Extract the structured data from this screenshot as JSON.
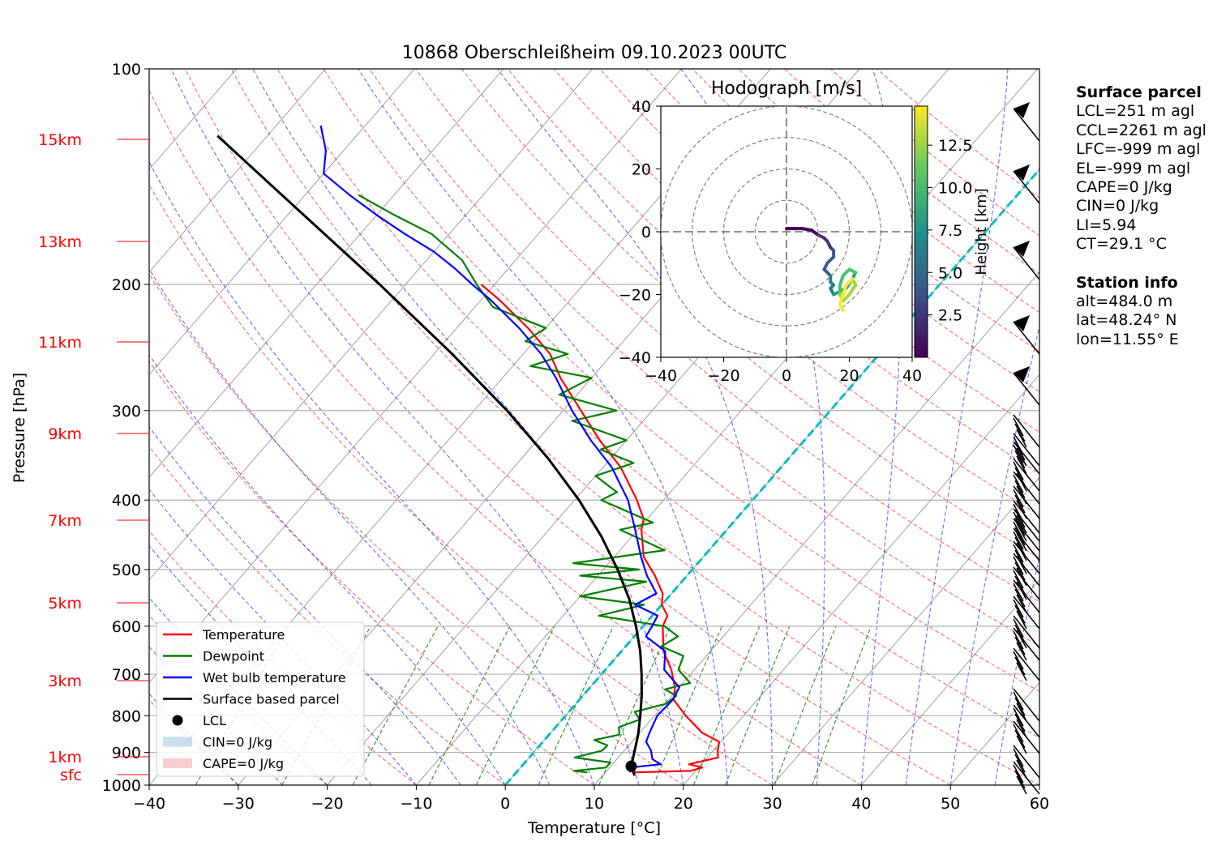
{
  "chart_data": {
    "type": "skew-t log-p",
    "title": "10868 Oberschleißheim 09.10.2023 00UTC",
    "xlabel": "Temperature [°C]",
    "ylabel": "Pressure [hPa]",
    "xlim": [
      -40,
      60
    ],
    "ylim": [
      1000,
      100
    ],
    "grid": true,
    "x_ticks": [
      "−40",
      "−30",
      "−20",
      "−10",
      "0",
      "10",
      "20",
      "30",
      "40",
      "50",
      "60"
    ],
    "y_ticks": [
      {
        "p": 100,
        "label": "100"
      },
      {
        "p": 200,
        "label": "200"
      },
      {
        "p": 300,
        "label": "300"
      },
      {
        "p": 400,
        "label": "400"
      },
      {
        "p": 500,
        "label": "500"
      },
      {
        "p": 600,
        "label": "600"
      },
      {
        "p": 700,
        "label": "700"
      },
      {
        "p": 800,
        "label": "800"
      },
      {
        "p": 900,
        "label": "900"
      },
      {
        "p": 1000,
        "label": "1000"
      }
    ],
    "height_labels": [
      {
        "p": 124,
        "label": "15km"
      },
      {
        "p": 158,
        "label": "13km"
      },
      {
        "p": 200,
        "label": "11km"
      },
      {
        "p": 249,
        "label": "9km"
      },
      {
        "p": 300,
        "label": "7km"
      },
      {
        "p": 361,
        "label": "5km"
      },
      {
        "p": 434,
        "label": "3km"
      },
      {
        "p": 525,
        "label": "1km"
      },
      {
        "p": 592,
        "label": "sfc"
      }
    ],
    "series": [
      {
        "name": "Temperature",
        "color": "#ff0000",
        "points": [
          [
            960,
            13.2
          ],
          [
            955,
            19.5
          ],
          [
            945,
            20.4
          ],
          [
            935,
            18.6
          ],
          [
            915,
            21.2
          ],
          [
            895,
            20.5
          ],
          [
            870,
            19.8
          ],
          [
            845,
            17.0
          ],
          [
            800,
            13.5
          ],
          [
            760,
            10.6
          ],
          [
            730,
            9.5
          ],
          [
            690,
            7.4
          ],
          [
            650,
            4.7
          ],
          [
            600,
            2.2
          ],
          [
            580,
            1.7
          ],
          [
            560,
            0.0
          ],
          [
            540,
            -1.0
          ],
          [
            510,
            -3.6
          ],
          [
            480,
            -6.7
          ],
          [
            440,
            -9.6
          ],
          [
            425,
            -10.4
          ],
          [
            400,
            -13.0
          ],
          [
            360,
            -18.0
          ],
          [
            330,
            -23.0
          ],
          [
            300,
            -28.0
          ],
          [
            270,
            -33.5
          ],
          [
            250,
            -37.0
          ],
          [
            230,
            -42.0
          ],
          [
            210,
            -48.0
          ],
          [
            200,
            -51.5
          ]
        ]
      },
      {
        "name": "Dewpoint",
        "color": "#008000",
        "points": [
          [
            960,
            8.0
          ],
          [
            955,
            6.3
          ],
          [
            945,
            9.6
          ],
          [
            930,
            9.6
          ],
          [
            915,
            5.1
          ],
          [
            895,
            7.5
          ],
          [
            880,
            7.6
          ],
          [
            865,
            5.6
          ],
          [
            850,
            7.9
          ],
          [
            830,
            7.1
          ],
          [
            810,
            8.7
          ],
          [
            790,
            7.4
          ],
          [
            770,
            10.1
          ],
          [
            750,
            10.5
          ],
          [
            735,
            8.6
          ],
          [
            720,
            10.8
          ],
          [
            690,
            8.2
          ],
          [
            660,
            7.4
          ],
          [
            640,
            4.0
          ],
          [
            620,
            4.9
          ],
          [
            600,
            2.4
          ],
          [
            580,
            -6.0
          ],
          [
            560,
            -2.0
          ],
          [
            545,
            -10.0
          ],
          [
            520,
            -4.0
          ],
          [
            510,
            -12.0
          ],
          [
            500,
            -6.0
          ],
          [
            490,
            -14.0
          ],
          [
            470,
            -5.0
          ],
          [
            440,
            -12.0
          ],
          [
            430,
            -9.0
          ],
          [
            400,
            -17.0
          ],
          [
            390,
            -16.0
          ],
          [
            370,
            -20.0
          ],
          [
            355,
            -17.0
          ],
          [
            340,
            -22.0
          ],
          [
            330,
            -20.0
          ],
          [
            310,
            -28.0
          ],
          [
            300,
            -24.0
          ],
          [
            285,
            -32.0
          ],
          [
            270,
            -30.0
          ],
          [
            260,
            -38.0
          ],
          [
            250,
            -35.0
          ],
          [
            240,
            -41.0
          ],
          [
            230,
            -40.0
          ],
          [
            215,
            -48.0
          ],
          [
            200,
            -52.0
          ],
          [
            185,
            -56.0
          ],
          [
            170,
            -62.0
          ],
          [
            160,
            -68.0
          ],
          [
            150,
            -74.0
          ]
        ]
      },
      {
        "name": "Wet bulb temperature",
        "color": "#0000ff",
        "points": [
          [
            960,
            12.8
          ],
          [
            945,
            12.3
          ],
          [
            935,
            15.4
          ],
          [
            920,
            14.0
          ],
          [
            895,
            13.0
          ],
          [
            870,
            11.6
          ],
          [
            845,
            11.1
          ],
          [
            800,
            10.3
          ],
          [
            760,
            10.5
          ],
          [
            730,
            10.0
          ],
          [
            690,
            6.6
          ],
          [
            650,
            4.9
          ],
          [
            620,
            1.3
          ],
          [
            600,
            1.0
          ],
          [
            580,
            0.6
          ],
          [
            560,
            -3.0
          ],
          [
            540,
            -1.7
          ],
          [
            510,
            -4.5
          ],
          [
            480,
            -7.0
          ],
          [
            440,
            -10.3
          ],
          [
            400,
            -14.0
          ],
          [
            360,
            -19.0
          ],
          [
            330,
            -24.0
          ],
          [
            300,
            -29.0
          ],
          [
            270,
            -34.0
          ],
          [
            250,
            -38.0
          ],
          [
            230,
            -43.0
          ],
          [
            210,
            -49.0
          ],
          [
            200,
            -52.5
          ],
          [
            190,
            -56.0
          ],
          [
            180,
            -60.0
          ],
          [
            170,
            -65.0
          ],
          [
            160,
            -70.0
          ],
          [
            150,
            -75.0
          ],
          [
            140,
            -80.0
          ],
          [
            130,
            -82.0
          ],
          [
            120,
            -85.0
          ]
        ]
      },
      {
        "name": "Surface based parcel",
        "color": "#000000",
        "points": [
          [
            970,
            13.6
          ],
          [
            941,
            12.3
          ],
          [
            900,
            11.3
          ],
          [
            850,
            10.0
          ],
          [
            800,
            8.4
          ],
          [
            750,
            6.6
          ],
          [
            700,
            4.5
          ],
          [
            650,
            2.1
          ],
          [
            600,
            -0.8
          ],
          [
            550,
            -4.2
          ],
          [
            500,
            -8.4
          ],
          [
            450,
            -13.4
          ],
          [
            400,
            -19.5
          ],
          [
            350,
            -27.0
          ],
          [
            300,
            -36.3
          ],
          [
            250,
            -48.0
          ],
          [
            200,
            -62.9
          ],
          [
            150,
            -82.6
          ],
          [
            124,
            -95.6
          ]
        ]
      }
    ],
    "lcl": {
      "p": 941,
      "t": 12.3
    },
    "legend": [
      "Temperature",
      "Dewpoint",
      "Wet bulb temperature",
      "Surface based parcel",
      "LCL",
      "CIN=0 J/kg",
      "CAPE=0 J/kg"
    ],
    "legend_position": "lower-left",
    "hodograph": {
      "title": "Hodograph [m/s]",
      "xlim": [
        -40,
        40
      ],
      "ylim": [
        -40,
        40
      ],
      "ticks": [
        "−40",
        "−20",
        "0",
        "20",
        "40"
      ],
      "colorbar_label": "Height [km]",
      "colorbar_ticks": [
        "2.5",
        "5.0",
        "7.5",
        "10.0",
        "12.5"
      ],
      "trace": [
        [
          0,
          1
        ],
        [
          2,
          1
        ],
        [
          5,
          1
        ],
        [
          8,
          0.5
        ],
        [
          10,
          -1
        ],
        [
          12,
          -2
        ],
        [
          13,
          -3
        ],
        [
          14,
          -5
        ],
        [
          15,
          -6
        ],
        [
          15,
          -8
        ],
        [
          13,
          -10
        ],
        [
          12,
          -12
        ],
        [
          14,
          -14
        ],
        [
          14,
          -16
        ],
        [
          15,
          -17
        ],
        [
          14,
          -18
        ],
        [
          15,
          -20
        ],
        [
          17,
          -19
        ],
        [
          19,
          -18
        ],
        [
          21,
          -15
        ],
        [
          22,
          -13
        ],
        [
          20,
          -12
        ],
        [
          18,
          -14
        ],
        [
          17,
          -17
        ],
        [
          17,
          -20
        ],
        [
          18,
          -22
        ],
        [
          20,
          -20
        ],
        [
          22,
          -17
        ],
        [
          21,
          -15
        ],
        [
          19,
          -17
        ],
        [
          18,
          -20
        ],
        [
          17,
          -23
        ],
        [
          18,
          -25
        ]
      ]
    },
    "wind_barbs_pressures": [
      940,
      880,
      850,
      820,
      790,
      760,
      730,
      700,
      680,
      650,
      620,
      600,
      580,
      560,
      540,
      520,
      500,
      480,
      460,
      440,
      420,
      400,
      300,
      250,
      200,
      150,
      130
    ],
    "annotations": [
      {
        "p": 955,
        "label": "sfc"
      }
    ]
  },
  "surface_parcel": {
    "heading": "Surface parcel",
    "lines": [
      "LCL=251 m agl",
      "CCL=2261 m agl",
      "LFC=-999 m agl",
      "EL=-999 m agl",
      "CAPE=0 J/kg",
      "CIN=0 J/kg",
      "LI=5.94",
      "CT=29.1 °C"
    ]
  },
  "station_info": {
    "heading": "Station info",
    "lines": [
      "alt=484.0 m",
      "lat=48.24° N",
      "lon=11.55° E"
    ]
  },
  "colors": {
    "dry_adiabat": "#ff0000",
    "moist_adiabat": "#0000ff",
    "mixing_ratio": "#008000",
    "isotherm": "#808080",
    "zero_isotherm": "#00c0c0",
    "height_label": "#ff0000"
  }
}
